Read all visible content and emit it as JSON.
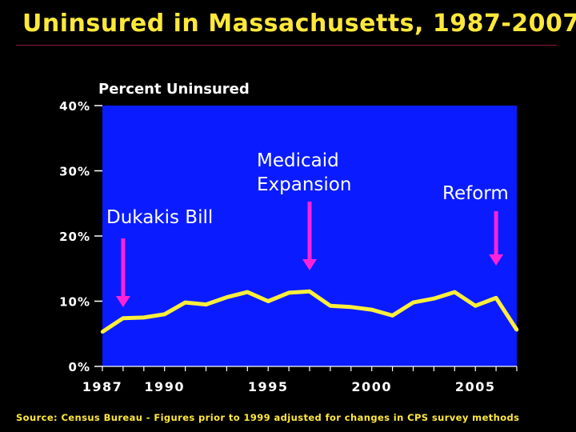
{
  "title": "Uninsured in Massachusetts, 1987-2007",
  "source": "Source: Census Bureau - Figures prior to 1999 adjusted for changes in CPS survey methods",
  "colors": {
    "background": "#000000",
    "plot_bg": "#0a1cff",
    "title": "#ffe83a",
    "line": "#ffef3a",
    "arrow": "#ff22d8"
  },
  "chart_data": {
    "type": "line",
    "title": "Uninsured in Massachusetts, 1987-2007",
    "ylabel": "Percent Uninsured",
    "xlabel": "",
    "xlim": [
      1987,
      2007
    ],
    "ylim": [
      0,
      40
    ],
    "x_ticks": [
      1987,
      1990,
      1995,
      2000,
      2005
    ],
    "x_tick_labels": [
      "1987",
      "1990",
      "1995",
      "2000",
      "2005"
    ],
    "y_ticks": [
      0,
      10,
      20,
      30,
      40
    ],
    "y_tick_labels": [
      "0%",
      "10%",
      "20%",
      "30%",
      "40%"
    ],
    "grid": false,
    "series": [
      {
        "name": "Percent Uninsured",
        "x": [
          1987,
          1988,
          1989,
          1990,
          1991,
          1992,
          1993,
          1994,
          1995,
          1996,
          1997,
          1998,
          1999,
          2000,
          2001,
          2002,
          2003,
          2004,
          2005,
          2006,
          2007
        ],
        "values": [
          5.3,
          7.4,
          7.5,
          8.0,
          9.8,
          9.5,
          10.6,
          11.4,
          10.0,
          11.3,
          11.5,
          9.3,
          9.1,
          8.7,
          7.8,
          9.8,
          10.4,
          11.4,
          9.3,
          10.5,
          5.6
        ]
      }
    ],
    "annotations": [
      {
        "lines": [
          "Dukakis Bill"
        ],
        "year": 1988
      },
      {
        "lines": [
          "Medicaid",
          "Expansion"
        ],
        "year": 1997
      },
      {
        "lines": [
          "Reform"
        ],
        "year": 2006
      }
    ]
  }
}
